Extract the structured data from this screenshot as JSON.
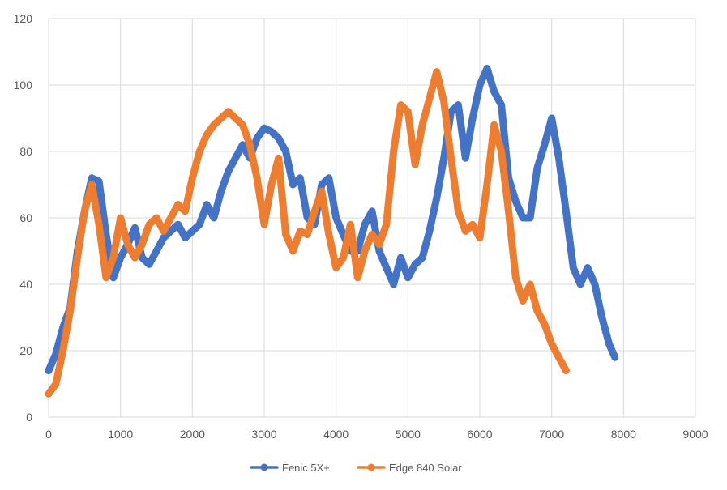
{
  "chart_data": {
    "type": "line",
    "title": "",
    "xlabel": "",
    "ylabel": "",
    "xlim": [
      0,
      9000
    ],
    "ylim": [
      0,
      120
    ],
    "xticks": [
      0,
      1000,
      2000,
      3000,
      4000,
      5000,
      6000,
      7000,
      8000,
      9000
    ],
    "yticks": [
      0,
      20,
      40,
      60,
      80,
      100,
      120
    ],
    "grid": true,
    "legend_position": "bottom",
    "series": [
      {
        "name": "Fenic 5X+",
        "color": "#4472C4",
        "x": [
          0,
          100,
          200,
          300,
          400,
          500,
          600,
          700,
          800,
          900,
          1000,
          1100,
          1200,
          1300,
          1400,
          1500,
          1600,
          1700,
          1800,
          1900,
          2000,
          2100,
          2200,
          2300,
          2400,
          2500,
          2600,
          2700,
          2800,
          2900,
          3000,
          3100,
          3200,
          3300,
          3400,
          3500,
          3600,
          3700,
          3800,
          3900,
          4000,
          4100,
          4200,
          4300,
          4400,
          4500,
          4600,
          4700,
          4800,
          4900,
          5000,
          5100,
          5200,
          5300,
          5400,
          5500,
          5600,
          5700,
          5800,
          5900,
          6000,
          6100,
          6200,
          6300,
          6400,
          6500,
          6600,
          6700,
          6800,
          6900,
          7000,
          7100,
          7200,
          7300,
          7400,
          7500,
          7600,
          7700,
          7800,
          7880
        ],
        "y": [
          14,
          19,
          27,
          33,
          50,
          62,
          72,
          71,
          55,
          42,
          48,
          52,
          57,
          48,
          46,
          50,
          54,
          56,
          58,
          54,
          56,
          58,
          64,
          60,
          68,
          74,
          78,
          82,
          78,
          84,
          87,
          86,
          84,
          80,
          70,
          72,
          60,
          58,
          70,
          72,
          60,
          55,
          50,
          50,
          58,
          62,
          50,
          45,
          40,
          48,
          42,
          46,
          48,
          56,
          66,
          78,
          92,
          94,
          78,
          90,
          100,
          105,
          98,
          94,
          72,
          65,
          60,
          60,
          75,
          82,
          90,
          78,
          62,
          45,
          40,
          45,
          40,
          30,
          22,
          18
        ]
      },
      {
        "name": "Edge 840 Solar",
        "color": "#ED7D31",
        "x": [
          0,
          100,
          200,
          300,
          400,
          500,
          600,
          700,
          800,
          900,
          1000,
          1100,
          1200,
          1300,
          1400,
          1500,
          1600,
          1700,
          1800,
          1900,
          2000,
          2100,
          2200,
          2300,
          2400,
          2500,
          2600,
          2700,
          2800,
          2900,
          3000,
          3100,
          3200,
          3300,
          3400,
          3500,
          3600,
          3700,
          3800,
          3900,
          4000,
          4100,
          4200,
          4300,
          4400,
          4500,
          4600,
          4700,
          4800,
          4900,
          5000,
          5100,
          5200,
          5300,
          5400,
          5500,
          5600,
          5700,
          5800,
          5900,
          6000,
          6100,
          6200,
          6300,
          6400,
          6500,
          6600,
          6700,
          6800,
          6900,
          7000,
          7100,
          7200
        ],
        "y": [
          7,
          10,
          20,
          32,
          48,
          62,
          70,
          58,
          42,
          48,
          60,
          52,
          48,
          52,
          58,
          60,
          56,
          60,
          64,
          62,
          72,
          80,
          85,
          88,
          90,
          92,
          90,
          88,
          82,
          72,
          58,
          70,
          78,
          55,
          50,
          56,
          55,
          62,
          68,
          55,
          45,
          48,
          58,
          42,
          50,
          55,
          52,
          58,
          80,
          94,
          92,
          76,
          88,
          96,
          104,
          95,
          78,
          62,
          56,
          58,
          54,
          70,
          88,
          80,
          62,
          42,
          35,
          40,
          32,
          28,
          22,
          18,
          14
        ]
      }
    ]
  }
}
